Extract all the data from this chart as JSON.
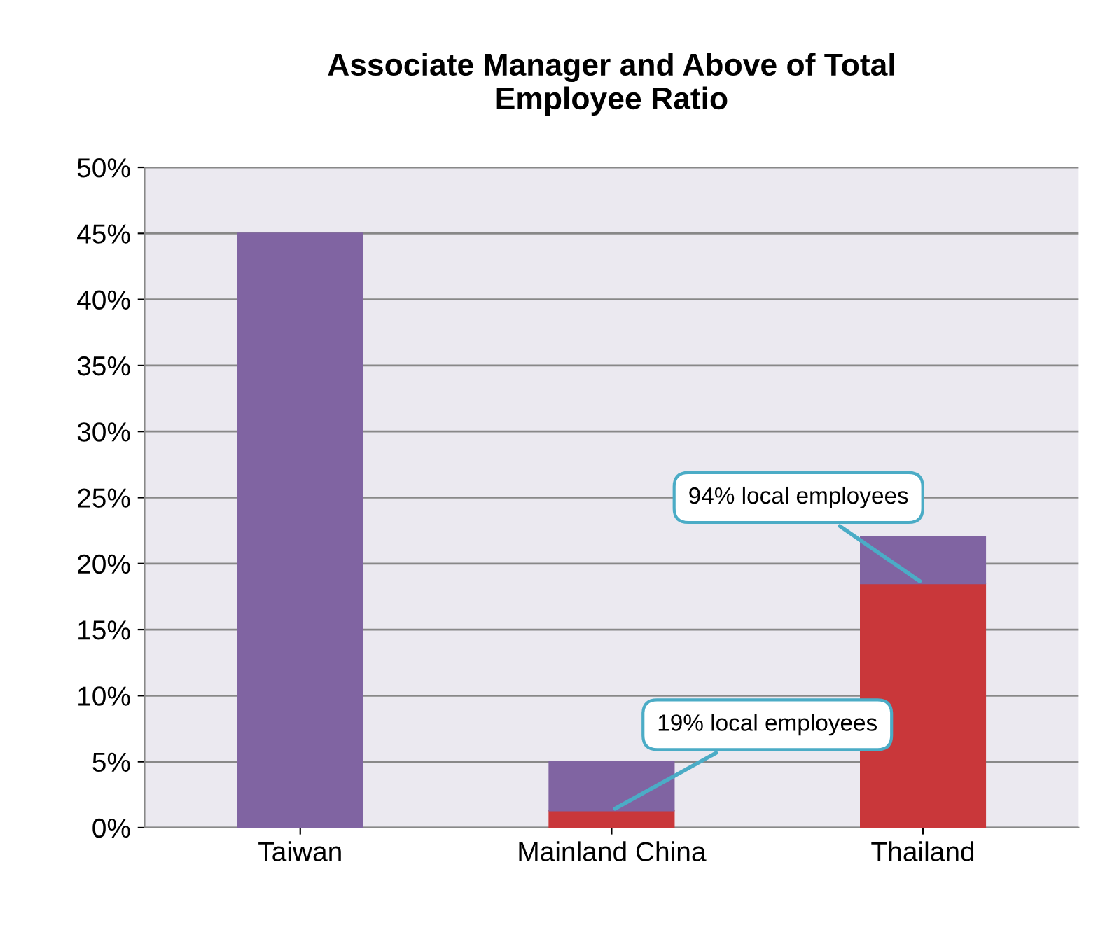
{
  "chart_data": {
    "type": "bar",
    "title": "Associate Manager and Above of Total\nEmployee Ratio",
    "categories": [
      "Taiwan",
      "Mainland China",
      "Thailand"
    ],
    "stacked": true,
    "series": [
      {
        "color": "#c9373a",
        "values": [
          null,
          1.3,
          18.5
        ]
      },
      {
        "color": "#8064a2",
        "values": [
          45,
          3.7,
          3.5
        ]
      }
    ],
    "ylim": [
      0,
      50
    ],
    "yticks": [
      {
        "value": 0,
        "label": "0%"
      },
      {
        "value": 5,
        "label": "5%"
      },
      {
        "value": 10,
        "label": "10%"
      },
      {
        "value": 15,
        "label": "15%"
      },
      {
        "value": 20,
        "label": "20%"
      },
      {
        "value": 25,
        "label": "25%"
      },
      {
        "value": 30,
        "label": "30%"
      },
      {
        "value": 35,
        "label": "35%"
      },
      {
        "value": 40,
        "label": "40%"
      },
      {
        "value": 45,
        "label": "45%"
      },
      {
        "value": 50,
        "label": "50%"
      }
    ],
    "grid": "y",
    "annotations": [
      {
        "text": "94% local employees",
        "x": "Thailand",
        "y": 18.5
      },
      {
        "text": "19% local employees",
        "x": "Mainland China",
        "y": 1.3
      }
    ]
  }
}
